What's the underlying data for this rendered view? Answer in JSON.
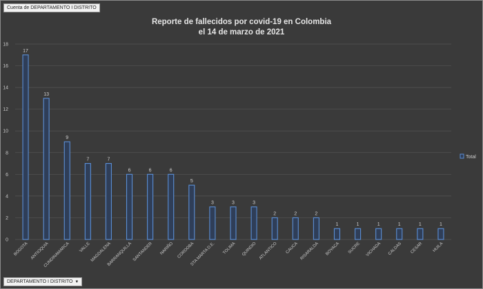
{
  "field_button": {
    "label": "Cuenta de DEPARTAMENTO I DISTRITO"
  },
  "filter_button": {
    "label": "DEPARTAMENTO I DISTRITO",
    "icon": "dropdown-arrow-icon"
  },
  "colors": {
    "background": "#3a3a3a",
    "bar_fill": "#2f3e58",
    "bar_stroke": "#5b8fd6",
    "grid": "#555555"
  },
  "chart_data": {
    "type": "bar",
    "title": [
      "Reporte de fallecidos por covid-19 en Colombia",
      "el 14 de marzo de 2021"
    ],
    "categories": [
      "BOGOTA",
      "ANTIOQUIA",
      "CUNDINAMARCA",
      "VALLE",
      "MAGDALENA",
      "BARRANQUILLA",
      "SANTANDER",
      "NARIÑO",
      "CORDOBA",
      "STA MARTA D.E.",
      "TOLIMA",
      "QUINDIO",
      "ATLANTICO",
      "CAUCA",
      "RISARALDA",
      "BOYACA",
      "SUCRE",
      "VICHADA",
      "CALDAS",
      "CESAR",
      "HUILA"
    ],
    "series": [
      {
        "name": "Total",
        "values": [
          17,
          13,
          9,
          7,
          7,
          6,
          6,
          6,
          5,
          3,
          3,
          3,
          2,
          2,
          2,
          1,
          1,
          1,
          1,
          1,
          1
        ]
      }
    ],
    "ylim": [
      0,
      18
    ],
    "yticks": [
      0,
      2,
      4,
      6,
      8,
      10,
      12,
      14,
      16,
      18
    ],
    "grid": true,
    "legend_position": "right",
    "data_labels": true
  }
}
